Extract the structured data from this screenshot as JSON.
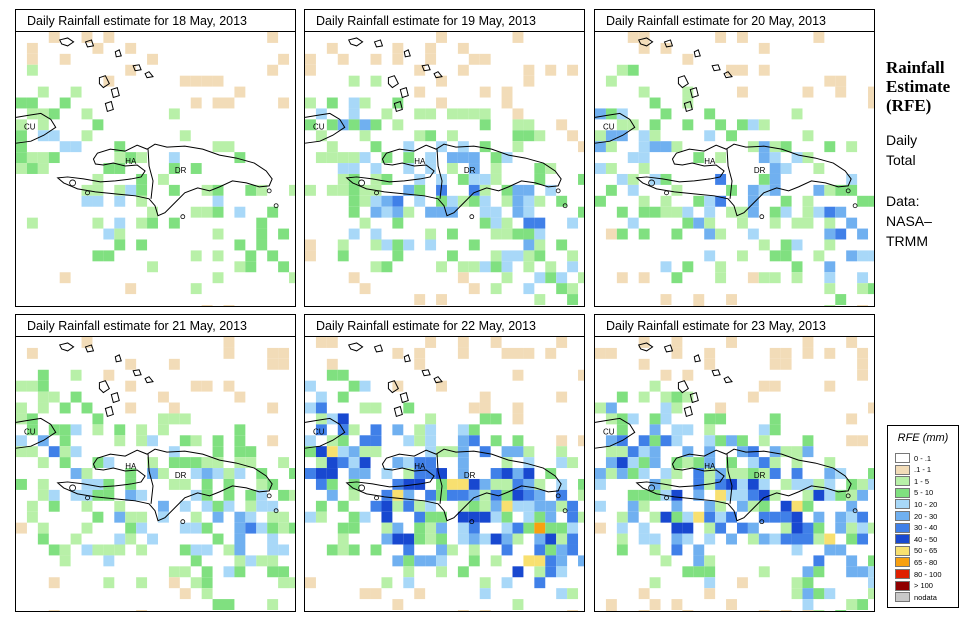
{
  "panels": [
    {
      "title": "Daily Rainfall estimate for  18 May, 2013",
      "seed": 11,
      "intensity": 0.35,
      "wet": 0.3
    },
    {
      "title": "Daily Rainfall estimate for  19 May, 2013",
      "seed": 23,
      "intensity": 0.6,
      "wet": 0.45
    },
    {
      "title": "Daily Rainfall estimate for  20 May, 2013",
      "seed": 37,
      "intensity": 0.65,
      "wet": 0.4
    },
    {
      "title": "Daily Rainfall estimate for  21 May, 2013",
      "seed": 41,
      "intensity": 0.55,
      "wet": 0.45
    },
    {
      "title": "Daily Rainfall estimate for  22 May, 2013",
      "seed": 53,
      "intensity": 1.0,
      "wet": 0.6
    },
    {
      "title": "Daily Rainfall estimate for  23 May, 2013",
      "seed": 67,
      "intensity": 0.85,
      "wet": 0.55
    }
  ],
  "map_labels": {
    "cuba": "CU",
    "haiti": "HA",
    "dr": "DR"
  },
  "sidebar": {
    "title_lines": [
      "Rainfall",
      "Estimate",
      "(RFE)"
    ],
    "period_lines": [
      "Daily",
      "Total"
    ],
    "source_lines": [
      "Data:",
      "NASA–",
      "TRMM"
    ]
  },
  "legend": {
    "title": "RFE (mm)",
    "items": [
      {
        "label": "0 - .1",
        "color": "#ffffff"
      },
      {
        "label": ".1 - 1",
        "color": "#f2dcb8"
      },
      {
        "label": "1 - 5",
        "color": "#b8f0a8"
      },
      {
        "label": "5 - 10",
        "color": "#80e080"
      },
      {
        "label": "10 - 20",
        "color": "#a8d8f8"
      },
      {
        "label": "20 - 30",
        "color": "#70b0f0"
      },
      {
        "label": "30 - 40",
        "color": "#4080e8"
      },
      {
        "label": "40 - 50",
        "color": "#1848d0"
      },
      {
        "label": "50 - 65",
        "color": "#f8e070"
      },
      {
        "label": "65 - 80",
        "color": "#f8a010"
      },
      {
        "label": "80 - 100",
        "color": "#e02000"
      },
      {
        "label": "> 100",
        "color": "#900000"
      },
      {
        "label": "nodata",
        "color": "#c8c8c8"
      }
    ]
  }
}
